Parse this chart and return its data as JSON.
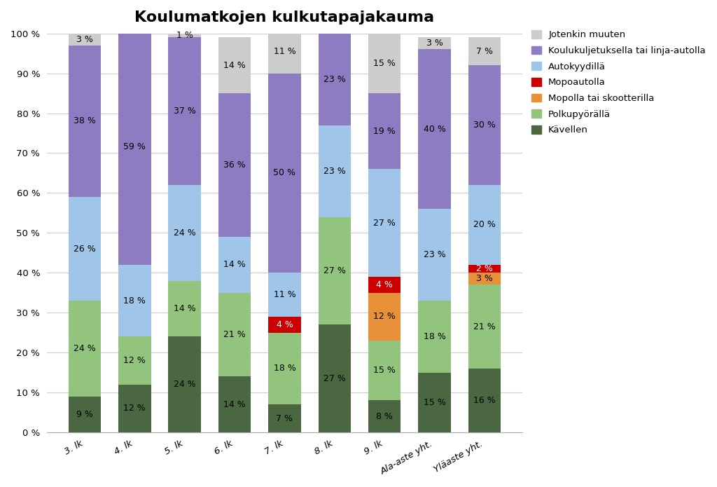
{
  "title": "Koulumatkojen kulkutapajakauma",
  "categories": [
    "3. lk",
    "4. lk",
    "5. lk",
    "6. lk",
    "7. lk",
    "8. lk",
    "9. lk",
    "Ala-aste yht.",
    "Yläaste yht."
  ],
  "series": [
    {
      "name": "Kävellen",
      "color": "#4a6741",
      "values": [
        9,
        12,
        24,
        14,
        7,
        27,
        8,
        15,
        16
      ]
    },
    {
      "name": "Polkupyörällä",
      "color": "#93c47d",
      "values": [
        24,
        12,
        14,
        21,
        18,
        27,
        15,
        18,
        21
      ]
    },
    {
      "name": "Mopolla tai skootterilla",
      "color": "#e69138",
      "values": [
        0,
        0,
        0,
        0,
        0,
        0,
        12,
        0,
        3
      ]
    },
    {
      "name": "Mopoautolla",
      "color": "#cc0000",
      "values": [
        0,
        0,
        0,
        0,
        4,
        0,
        4,
        0,
        2
      ]
    },
    {
      "name": "Autokyydillä",
      "color": "#9fc5e8",
      "values": [
        26,
        18,
        24,
        14,
        11,
        23,
        27,
        23,
        20
      ]
    },
    {
      "name": "Koulukuljetuksella tai linja-autolla",
      "color": "#8e7cc3",
      "values": [
        38,
        59,
        37,
        36,
        50,
        23,
        19,
        40,
        30
      ]
    },
    {
      "name": "Jotenkin muuten",
      "color": "#cccccc",
      "values": [
        3,
        0,
        1,
        14,
        11,
        0,
        15,
        3,
        7
      ]
    }
  ],
  "ylim": [
    0,
    100
  ],
  "yticks": [
    0,
    10,
    20,
    30,
    40,
    50,
    60,
    70,
    80,
    90,
    100
  ],
  "ytick_labels": [
    "0 %",
    "10 %",
    "20 %",
    "30 %",
    "40 %",
    "50 %",
    "60 %",
    "70 %",
    "80 %",
    "90 %",
    "100 %"
  ],
  "background_color": "#ffffff",
  "grid_color": "#cccccc",
  "title_fontsize": 16,
  "label_fontsize": 9,
  "legend_fontsize": 9.5,
  "bar_width": 0.65,
  "figsize": [
    10.24,
    6.95
  ],
  "dpi": 100
}
